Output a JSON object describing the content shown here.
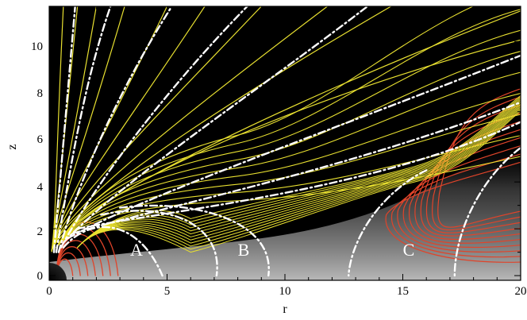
{
  "chart_data": {
    "type": "contour",
    "xlabel": "r",
    "ylabel": "z",
    "xlim": [
      0,
      20
    ],
    "ylim": [
      -0.2,
      11.5
    ],
    "x_ticks": [
      0,
      5,
      10,
      15,
      20
    ],
    "y_ticks": [
      0,
      2,
      4,
      6,
      8,
      10
    ],
    "annotations": [
      {
        "text": "A",
        "x": 3.8,
        "y": 1.2
      },
      {
        "text": "B",
        "x": 8.2,
        "y": 1.2
      },
      {
        "text": "C",
        "x": 15.6,
        "y": 1.2
      }
    ],
    "colors": {
      "background": "#000000",
      "open_field_lines": "#e8e030",
      "closed_field_lines": "#e0442a",
      "dash_dot_lines": "#ffffff"
    }
  }
}
